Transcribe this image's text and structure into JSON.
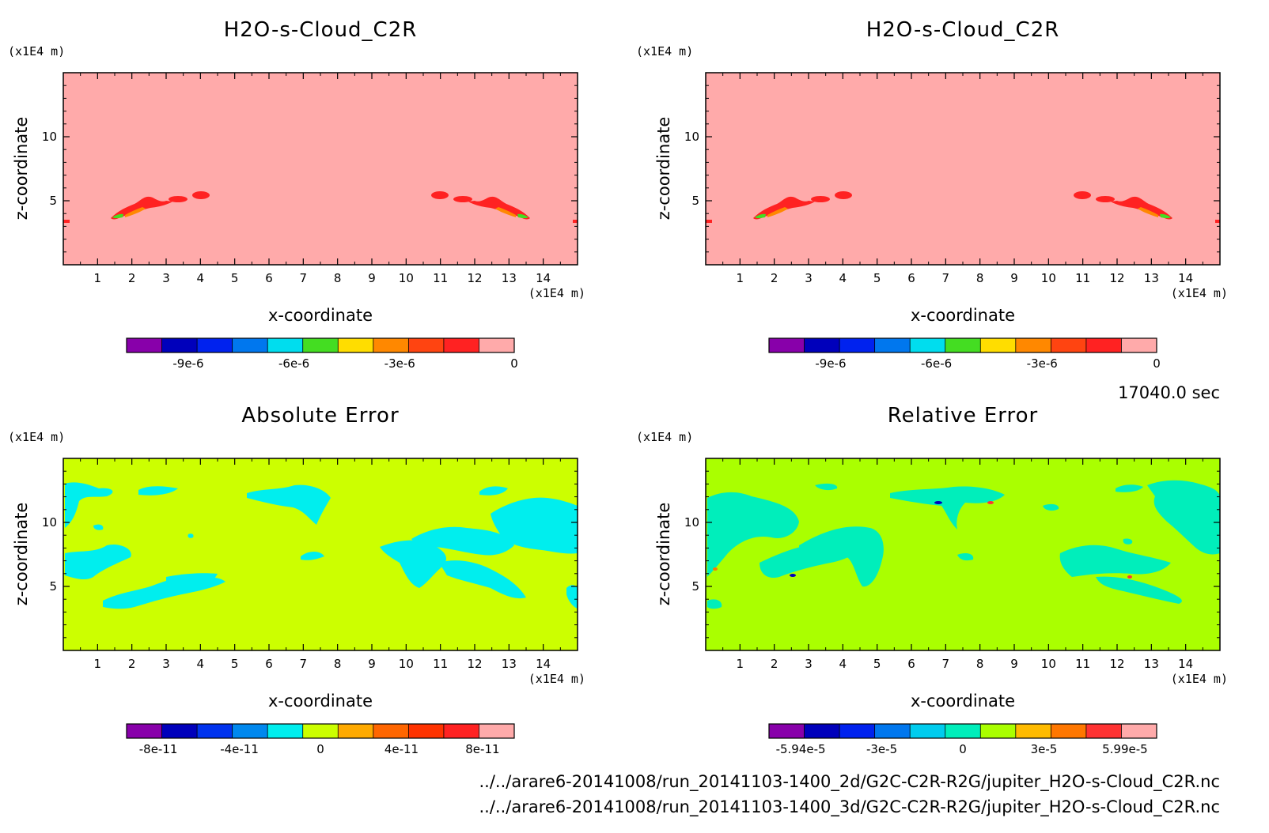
{
  "time_label": "17040.0 sec",
  "files": [
    "../../arare6-20141008/run_20141103-1400_2d/G2C-C2R-R2G/jupiter_H2O-s-Cloud_C2R.nc",
    "../../arare6-20141008/run_20141103-1400_3d/G2C-C2R-R2G/jupiter_H2O-s-Cloud_C2R.nc"
  ],
  "chart_data": [
    {
      "type": "heatmap",
      "title": "H2O-s-Cloud_C2R",
      "xlabel": "x-coordinate",
      "ylabel": "z-coordinate",
      "x_unit": "(x1E4 m)",
      "y_unit": "(x1E4 m)",
      "xlim": [
        0,
        15
      ],
      "ylim": [
        0,
        15
      ],
      "x_ticks": [
        "1",
        "2",
        "3",
        "4",
        "5",
        "6",
        "7",
        "8",
        "9",
        "10",
        "11",
        "12",
        "13",
        "14"
      ],
      "y_ticks": [
        "5",
        "10"
      ],
      "background_value": 0,
      "colorbar": {
        "colors": [
          "#8800aa",
          "#0000bb",
          "#0022ee",
          "#0077ee",
          "#00ddee",
          "#44dd22",
          "#ffdd00",
          "#ff8800",
          "#ff4411",
          "#ff2222",
          "#ffaaaa"
        ],
        "tick_labels": [
          "-9e-6",
          "-6e-6",
          "-3e-6",
          "0"
        ]
      },
      "features": [
        {
          "x": 2.3,
          "z": 4.5,
          "level": 8
        },
        {
          "x": 4.0,
          "z": 5.4,
          "level": 8
        },
        {
          "x": 12.7,
          "z": 4.5,
          "level": 8
        },
        {
          "x": 11.0,
          "z": 5.4,
          "level": 8
        }
      ]
    },
    {
      "type": "heatmap",
      "title": "H2O-s-Cloud_C2R",
      "xlabel": "x-coordinate",
      "ylabel": "z-coordinate",
      "x_unit": "(x1E4 m)",
      "y_unit": "(x1E4 m)",
      "xlim": [
        0,
        15
      ],
      "ylim": [
        0,
        15
      ],
      "x_ticks": [
        "1",
        "2",
        "3",
        "4",
        "5",
        "6",
        "7",
        "8",
        "9",
        "10",
        "11",
        "12",
        "13",
        "14"
      ],
      "y_ticks": [
        "5",
        "10"
      ],
      "background_value": 0,
      "colorbar": {
        "colors": [
          "#8800aa",
          "#0000bb",
          "#0022ee",
          "#0077ee",
          "#00ddee",
          "#44dd22",
          "#ffdd00",
          "#ff8800",
          "#ff4411",
          "#ff2222",
          "#ffaaaa"
        ],
        "tick_labels": [
          "-9e-6",
          "-6e-6",
          "-3e-6",
          "0"
        ]
      },
      "features": [
        {
          "x": 2.3,
          "z": 4.5,
          "level": 8
        },
        {
          "x": 4.0,
          "z": 5.4,
          "level": 8
        },
        {
          "x": 12.7,
          "z": 4.5,
          "level": 8
        },
        {
          "x": 11.0,
          "z": 5.4,
          "level": 8
        }
      ]
    },
    {
      "type": "heatmap",
      "title": "Absolute Error",
      "xlabel": "x-coordinate",
      "ylabel": "z-coordinate",
      "x_unit": "(x1E4 m)",
      "y_unit": "(x1E4 m)",
      "xlim": [
        0,
        15
      ],
      "ylim": [
        0,
        15
      ],
      "x_ticks": [
        "1",
        "2",
        "3",
        "4",
        "5",
        "6",
        "7",
        "8",
        "9",
        "10",
        "11",
        "12",
        "13",
        "14"
      ],
      "y_ticks": [
        "5",
        "10"
      ],
      "background_value": 0,
      "colorbar": {
        "colors": [
          "#8800aa",
          "#0000bb",
          "#0033ee",
          "#0088ee",
          "#00eeee",
          "#ccff00",
          "#ffaa00",
          "#ff6600",
          "#ff3300",
          "#ff2222",
          "#ffaaaa"
        ],
        "tick_labels": [
          "-8e-11",
          "-4e-11",
          "0",
          "4e-11",
          "8e-11"
        ]
      }
    },
    {
      "type": "heatmap",
      "title": "Relative Error",
      "xlabel": "x-coordinate",
      "ylabel": "z-coordinate",
      "x_unit": "(x1E4 m)",
      "y_unit": "(x1E4 m)",
      "xlim": [
        0,
        15
      ],
      "ylim": [
        0,
        15
      ],
      "x_ticks": [
        "1",
        "2",
        "3",
        "4",
        "5",
        "6",
        "7",
        "8",
        "9",
        "10",
        "11",
        "12",
        "13",
        "14"
      ],
      "y_ticks": [
        "5",
        "10"
      ],
      "background_value": 0,
      "colorbar": {
        "colors": [
          "#8800aa",
          "#0000bb",
          "#0022ee",
          "#0077ee",
          "#00ccee",
          "#00eebb",
          "#aaff00",
          "#ffbb00",
          "#ff7700",
          "#ff3333",
          "#ffaaaa"
        ],
        "tick_labels": [
          "-5.94e-5",
          "-3e-5",
          "0",
          "3e-5",
          "5.99e-5"
        ]
      }
    }
  ]
}
